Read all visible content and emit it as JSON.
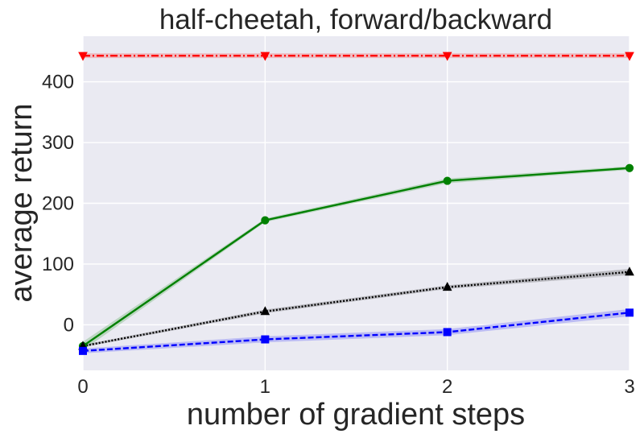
{
  "chart_data": {
    "type": "line",
    "title": "half-cheetah, forward/backward",
    "xlabel": "number of gradient steps",
    "ylabel": "average return",
    "x": [
      0,
      1,
      2,
      3
    ],
    "xlim": [
      0,
      3
    ],
    "ylim": [
      -75,
      475
    ],
    "xticks": [
      0,
      1,
      2,
      3
    ],
    "yticks": [
      0,
      100,
      200,
      300,
      400
    ],
    "grid": true,
    "background": "#EAEAF2",
    "series": [
      {
        "values": [
          443,
          443,
          443,
          443
        ],
        "color": "#FF0000",
        "linestyle": "dashdot",
        "marker": "triangle-down",
        "band": [
          4,
          4,
          4,
          4
        ]
      },
      {
        "values": [
          -35,
          172,
          237,
          258
        ],
        "color": "#008000",
        "linestyle": "solid",
        "marker": "circle",
        "band": [
          7,
          3,
          4,
          3
        ]
      },
      {
        "values": [
          -35,
          22,
          62,
          87
        ],
        "color": "#000000",
        "linestyle": "dotted",
        "marker": "triangle-up",
        "band": [
          2,
          3,
          3,
          5
        ]
      },
      {
        "values": [
          -43,
          -24,
          -12,
          20
        ],
        "color": "#0000FF",
        "linestyle": "dashed",
        "marker": "square",
        "band": [
          4,
          5,
          5,
          6
        ]
      }
    ]
  }
}
